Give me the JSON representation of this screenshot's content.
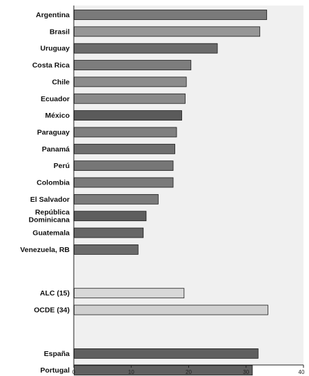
{
  "chart_data": {
    "type": "bar",
    "orientation": "horizontal",
    "title": "",
    "xlabel": "",
    "ylabel": "",
    "xlim": [
      0,
      40
    ],
    "x_ticks": [
      "0",
      "10",
      "20",
      "30",
      "40"
    ],
    "grid": false,
    "legend": "none",
    "categories": [
      "Argentina",
      "Brasil",
      "Uruguay",
      "Costa Rica",
      "Chile",
      "Ecuador",
      "México",
      "Paraguay",
      "Panamá",
      "Perú",
      "Colombia",
      "El Salvador",
      "República Dominicana",
      "Guatemala",
      "Venezuela, RB",
      "ALC (15)",
      "OCDE (34)",
      "España",
      "Portugal"
    ],
    "category_lines": [
      [
        "Argentina"
      ],
      [
        "Brasil"
      ],
      [
        "Uruguay"
      ],
      [
        "Costa Rica"
      ],
      [
        "Chile"
      ],
      [
        "Ecuador"
      ],
      [
        "México"
      ],
      [
        "Paraguay"
      ],
      [
        "Panamá"
      ],
      [
        "Perú"
      ],
      [
        "Colombia"
      ],
      [
        "El Salvador"
      ],
      [
        "República",
        "Dominicana"
      ],
      [
        "Guatemala"
      ],
      [
        "Venezuela, RB"
      ],
      [
        "ALC (15)"
      ],
      [
        "OCDE (34)"
      ],
      [
        "España"
      ],
      [
        "Portugal"
      ]
    ],
    "values": [
      33.6,
      32.4,
      25.0,
      20.4,
      19.6,
      19.4,
      18.8,
      17.9,
      17.6,
      17.3,
      17.3,
      14.7,
      12.6,
      12.1,
      11.2,
      19.2,
      33.8,
      32.1,
      31.1
    ],
    "colors": [
      "#7a7a7a",
      "#969696",
      "#6b6b6b",
      "#7d7d7d",
      "#8c8c8c",
      "#8a8a8a",
      "#5a5a5a",
      "#7f7f7f",
      "#6e6e6e",
      "#767676",
      "#7a7a7a",
      "#7b7b7b",
      "#5e5e5e",
      "#666666",
      "#6a6a6a",
      "#d8d8d8",
      "#d0d0d0",
      "#5f5f5f",
      "#606060"
    ],
    "gap_after_indices": [
      14,
      16
    ],
    "background_color": "#f0f0f0"
  }
}
